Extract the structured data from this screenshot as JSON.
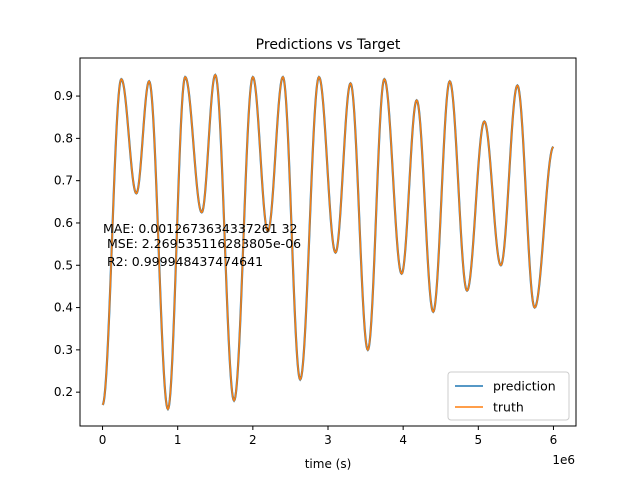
{
  "chart_data": {
    "type": "line",
    "title": "Predictions vs Target",
    "xlabel": "time (s)",
    "ylabel": "",
    "x_offset_label": "1e6",
    "xlim": [
      -0.3,
      6.3
    ],
    "ylim": [
      0.12,
      0.99
    ],
    "x_ticks": [
      0,
      1,
      2,
      3,
      4,
      5,
      6
    ],
    "x_tick_labels": [
      "0",
      "1",
      "2",
      "3",
      "4",
      "5",
      "6"
    ],
    "y_ticks": [
      0.2,
      0.3,
      0.4,
      0.5,
      0.6,
      0.7,
      0.8,
      0.9
    ],
    "y_tick_labels": [
      "0.2",
      "0.3",
      "0.4",
      "0.5",
      "0.6",
      "0.7",
      "0.8",
      "0.9"
    ],
    "grid": false,
    "legend_position": "lower-right",
    "annotation_lines": [
      "MAE: 0.0012673634337261 32",
      " MSE: 2.269535116283805e-06",
      " R2: 0.999948437474641"
    ],
    "extrema_x": [
      0.0,
      0.25,
      0.45,
      0.62,
      0.87,
      1.1,
      1.32,
      1.5,
      1.75,
      2.0,
      2.2,
      2.4,
      2.63,
      2.88,
      3.1,
      3.3,
      3.53,
      3.75,
      3.98,
      4.18,
      4.4,
      4.62,
      4.85,
      5.08,
      5.3,
      5.52,
      5.75,
      6.0
    ],
    "extrema_y": [
      0.17,
      0.94,
      0.67,
      0.935,
      0.16,
      0.945,
      0.625,
      0.95,
      0.18,
      0.945,
      0.58,
      0.945,
      0.23,
      0.945,
      0.53,
      0.93,
      0.3,
      0.94,
      0.48,
      0.89,
      0.39,
      0.935,
      0.44,
      0.84,
      0.5,
      0.925,
      0.4,
      0.78
    ],
    "series": [
      {
        "name": "prediction",
        "color": "#1f77b4"
      },
      {
        "name": "truth",
        "color": "#ff7f0e"
      }
    ]
  }
}
